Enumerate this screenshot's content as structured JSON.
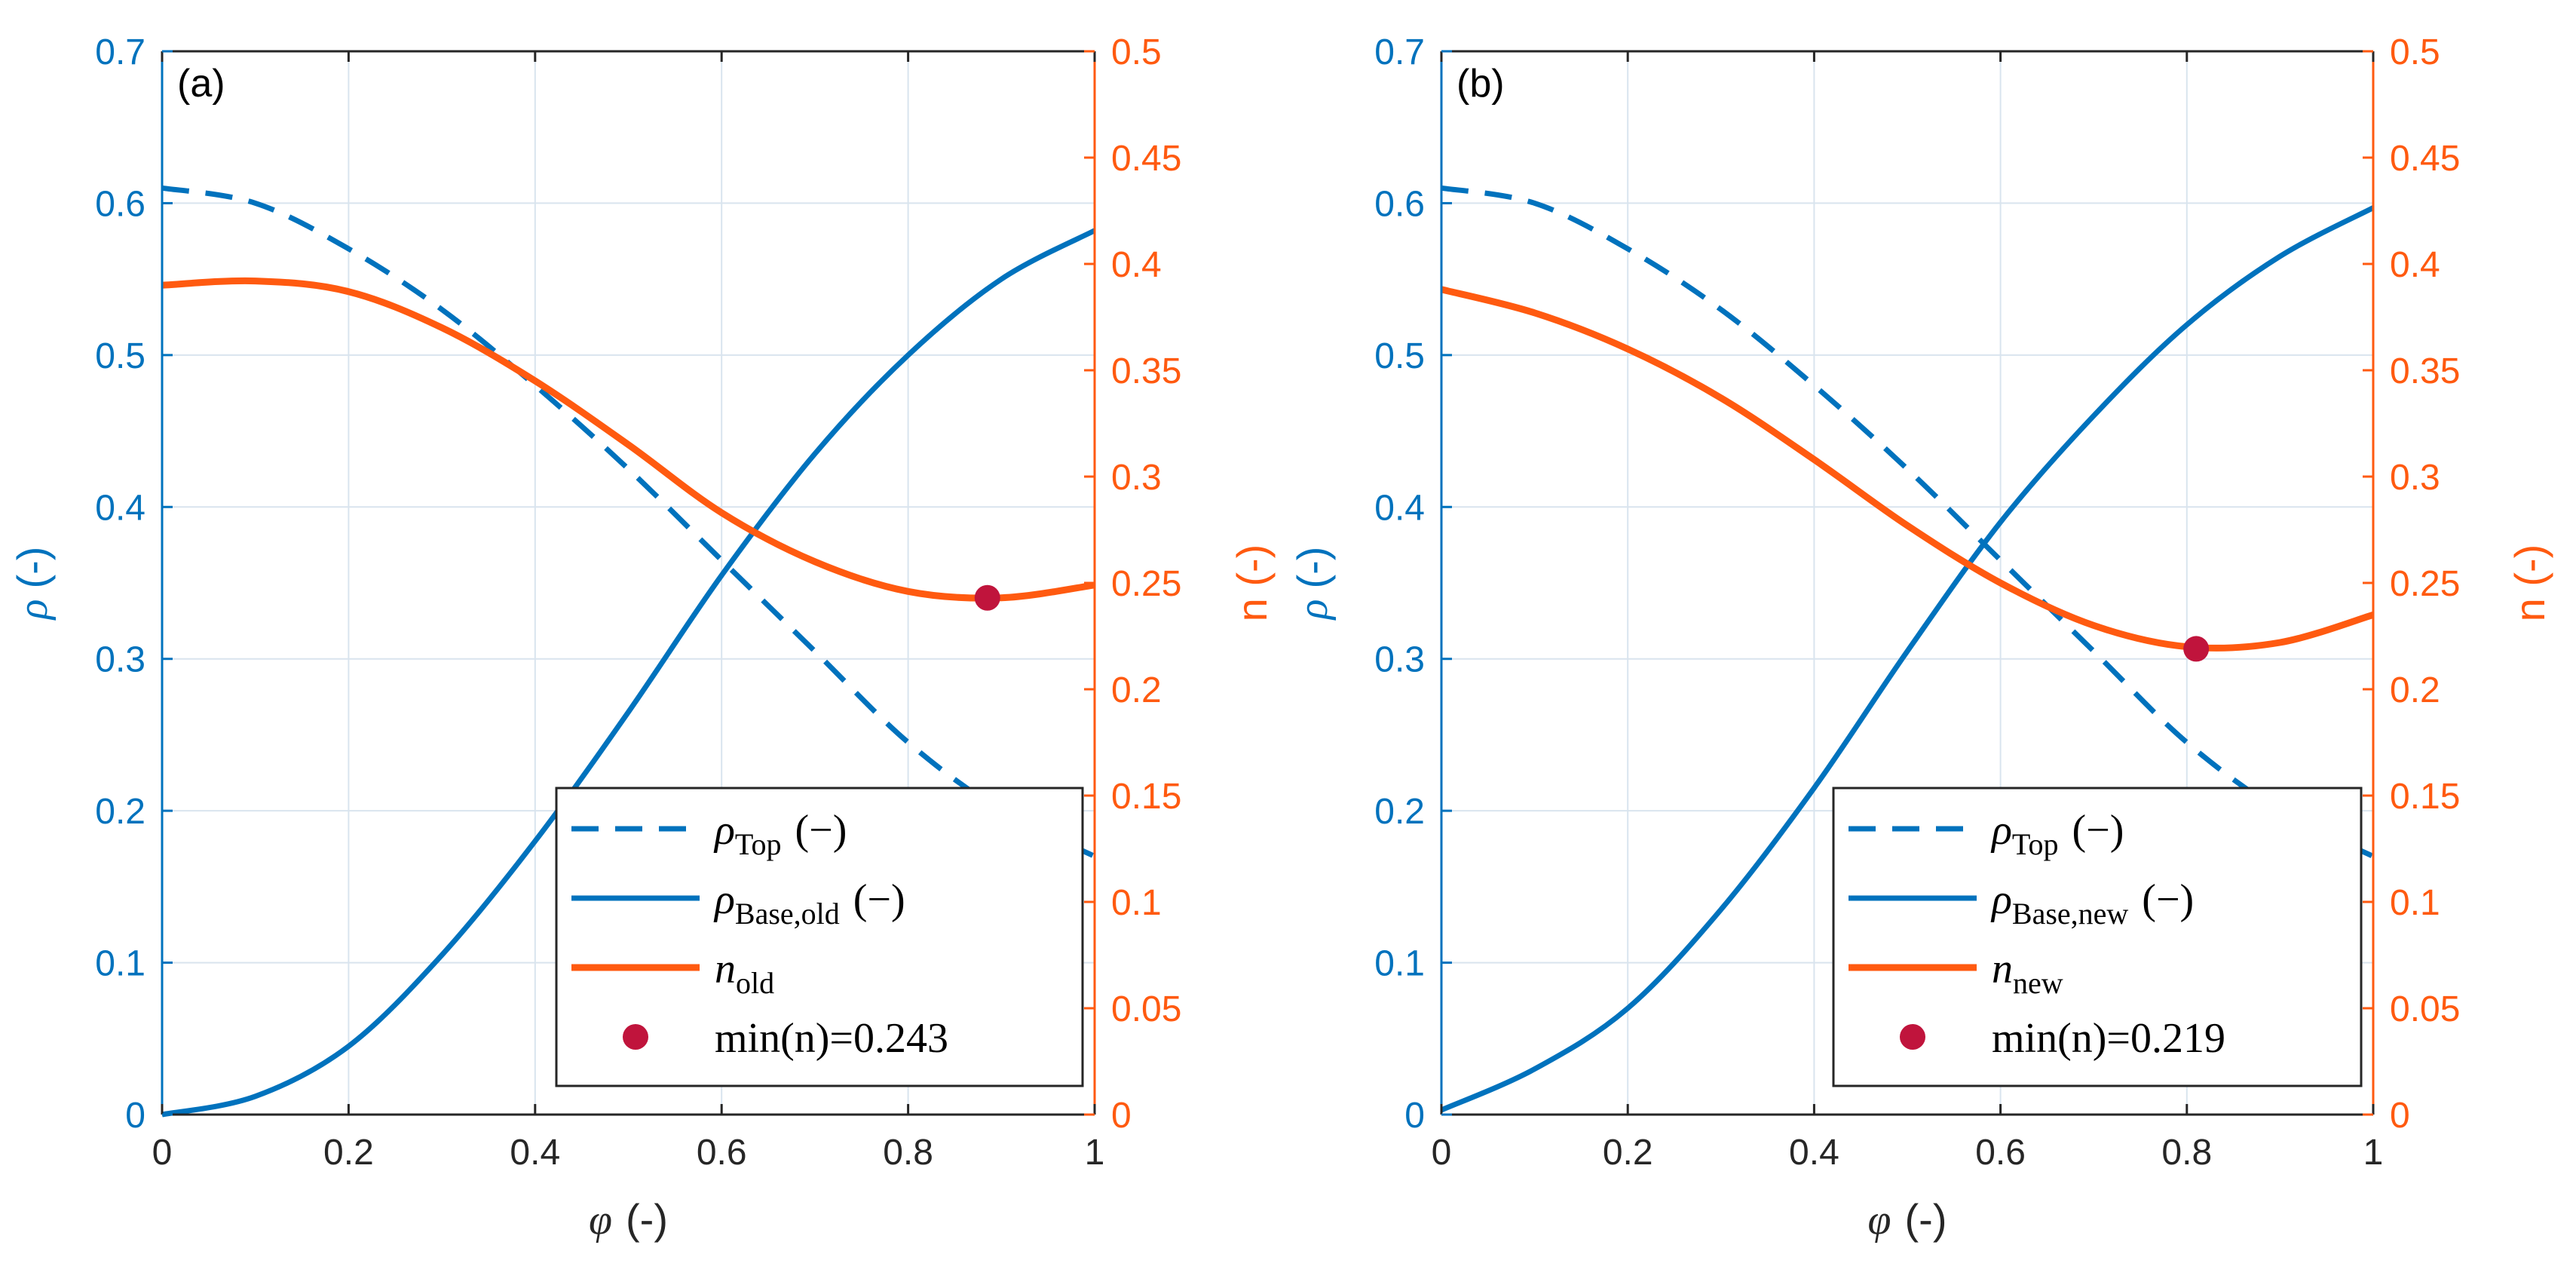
{
  "colors": {
    "blue": "#0072BD",
    "orange": "#FF5A10",
    "marker": "#C0143C",
    "axis": "#262626",
    "grid": "#D9E4EE"
  },
  "chart_data": [
    {
      "type": "line",
      "panel_label": "(a)",
      "xlabel_symbol": "φ",
      "xlabel_unit": "(-)",
      "ylabel_left_symbol": "ρ",
      "ylabel_left_unit": "(-)",
      "ylabel_right": "n (-)",
      "xlim": [
        0,
        1
      ],
      "ylim_left": [
        0,
        0.7
      ],
      "ylim_right": [
        0,
        0.5
      ],
      "x_ticks": [
        "0",
        "0.2",
        "0.4",
        "0.6",
        "0.8",
        "1"
      ],
      "y_left_ticks": [
        "0",
        "0.1",
        "0.2",
        "0.3",
        "0.4",
        "0.5",
        "0.6",
        "0.7"
      ],
      "y_right_ticks": [
        "0",
        "0.05",
        "0.1",
        "0.15",
        "0.2",
        "0.25",
        "0.3",
        "0.35",
        "0.4",
        "0.45",
        "0.5"
      ],
      "grid": true,
      "legend_position": "bottom-right",
      "x": [
        0,
        0.1,
        0.2,
        0.3,
        0.4,
        0.5,
        0.6,
        0.7,
        0.8,
        0.9,
        1.0
      ],
      "series": [
        {
          "name": "ρ_Top (−)",
          "legend_sym": "ρ",
          "legend_sub": "Top",
          "legend_tail": "(−)",
          "axis": "left",
          "style": "dashed",
          "color": "blue",
          "values": [
            0.61,
            0.6,
            0.57,
            0.53,
            0.48,
            0.425,
            0.365,
            0.305,
            0.245,
            0.2,
            0.17
          ]
        },
        {
          "name": "ρ_Base,old (−)",
          "legend_sym": "ρ",
          "legend_sub": "Base,old",
          "legend_tail": "(−)",
          "axis": "left",
          "style": "solid",
          "color": "blue",
          "values": [
            0,
            0.012,
            0.045,
            0.105,
            0.18,
            0.265,
            0.355,
            0.435,
            0.5,
            0.55,
            0.582
          ]
        },
        {
          "name": "n_old",
          "legend_sym": "n",
          "legend_sub": "old",
          "legend_tail": "",
          "axis": "right",
          "style": "solid",
          "color": "orange",
          "values": [
            0.39,
            0.392,
            0.387,
            0.37,
            0.345,
            0.315,
            0.283,
            0.26,
            0.246,
            0.243,
            0.249
          ]
        }
      ],
      "marker": {
        "name": "min(n)=0.243",
        "legend_label": "min(n)=0.243",
        "axis": "right",
        "color": "marker",
        "x": 0.885,
        "y": 0.243
      }
    },
    {
      "type": "line",
      "panel_label": "(b)",
      "xlabel_symbol": "φ",
      "xlabel_unit": "(-)",
      "ylabel_left_symbol": "ρ",
      "ylabel_left_unit": "(-)",
      "ylabel_right": "n (-)",
      "xlim": [
        0,
        1
      ],
      "ylim_left": [
        0,
        0.7
      ],
      "ylim_right": [
        0,
        0.5
      ],
      "x_ticks": [
        "0",
        "0.2",
        "0.4",
        "0.6",
        "0.8",
        "1"
      ],
      "y_left_ticks": [
        "0",
        "0.1",
        "0.2",
        "0.3",
        "0.4",
        "0.5",
        "0.6",
        "0.7"
      ],
      "y_right_ticks": [
        "0",
        "0.05",
        "0.1",
        "0.15",
        "0.2",
        "0.25",
        "0.3",
        "0.35",
        "0.4",
        "0.45",
        "0.5"
      ],
      "grid": true,
      "legend_position": "bottom-right",
      "x": [
        0,
        0.1,
        0.2,
        0.3,
        0.4,
        0.5,
        0.6,
        0.7,
        0.8,
        0.9,
        1.0
      ],
      "series": [
        {
          "name": "ρ_Top (−)",
          "legend_sym": "ρ",
          "legend_sub": "Top",
          "legend_tail": "(−)",
          "axis": "left",
          "style": "dashed",
          "color": "blue",
          "values": [
            0.61,
            0.6,
            0.57,
            0.53,
            0.48,
            0.425,
            0.365,
            0.305,
            0.245,
            0.2,
            0.17
          ]
        },
        {
          "name": "ρ_Base,new (−)",
          "legend_sym": "ρ",
          "legend_sub": "Base,new",
          "legend_tail": "(−)",
          "axis": "left",
          "style": "solid",
          "color": "blue",
          "values": [
            0.003,
            0.03,
            0.07,
            0.135,
            0.215,
            0.305,
            0.39,
            0.46,
            0.52,
            0.565,
            0.597
          ]
        },
        {
          "name": "n_new",
          "legend_sym": "n",
          "legend_sub": "new",
          "legend_tail": "",
          "axis": "right",
          "style": "solid",
          "color": "orange",
          "values": [
            0.388,
            0.377,
            0.36,
            0.337,
            0.308,
            0.277,
            0.25,
            0.23,
            0.22,
            0.222,
            0.235
          ]
        }
      ],
      "marker": {
        "name": "min(n)=0.219",
        "legend_label": "min(n)=0.219",
        "axis": "right",
        "color": "marker",
        "x": 0.81,
        "y": 0.219
      }
    }
  ]
}
